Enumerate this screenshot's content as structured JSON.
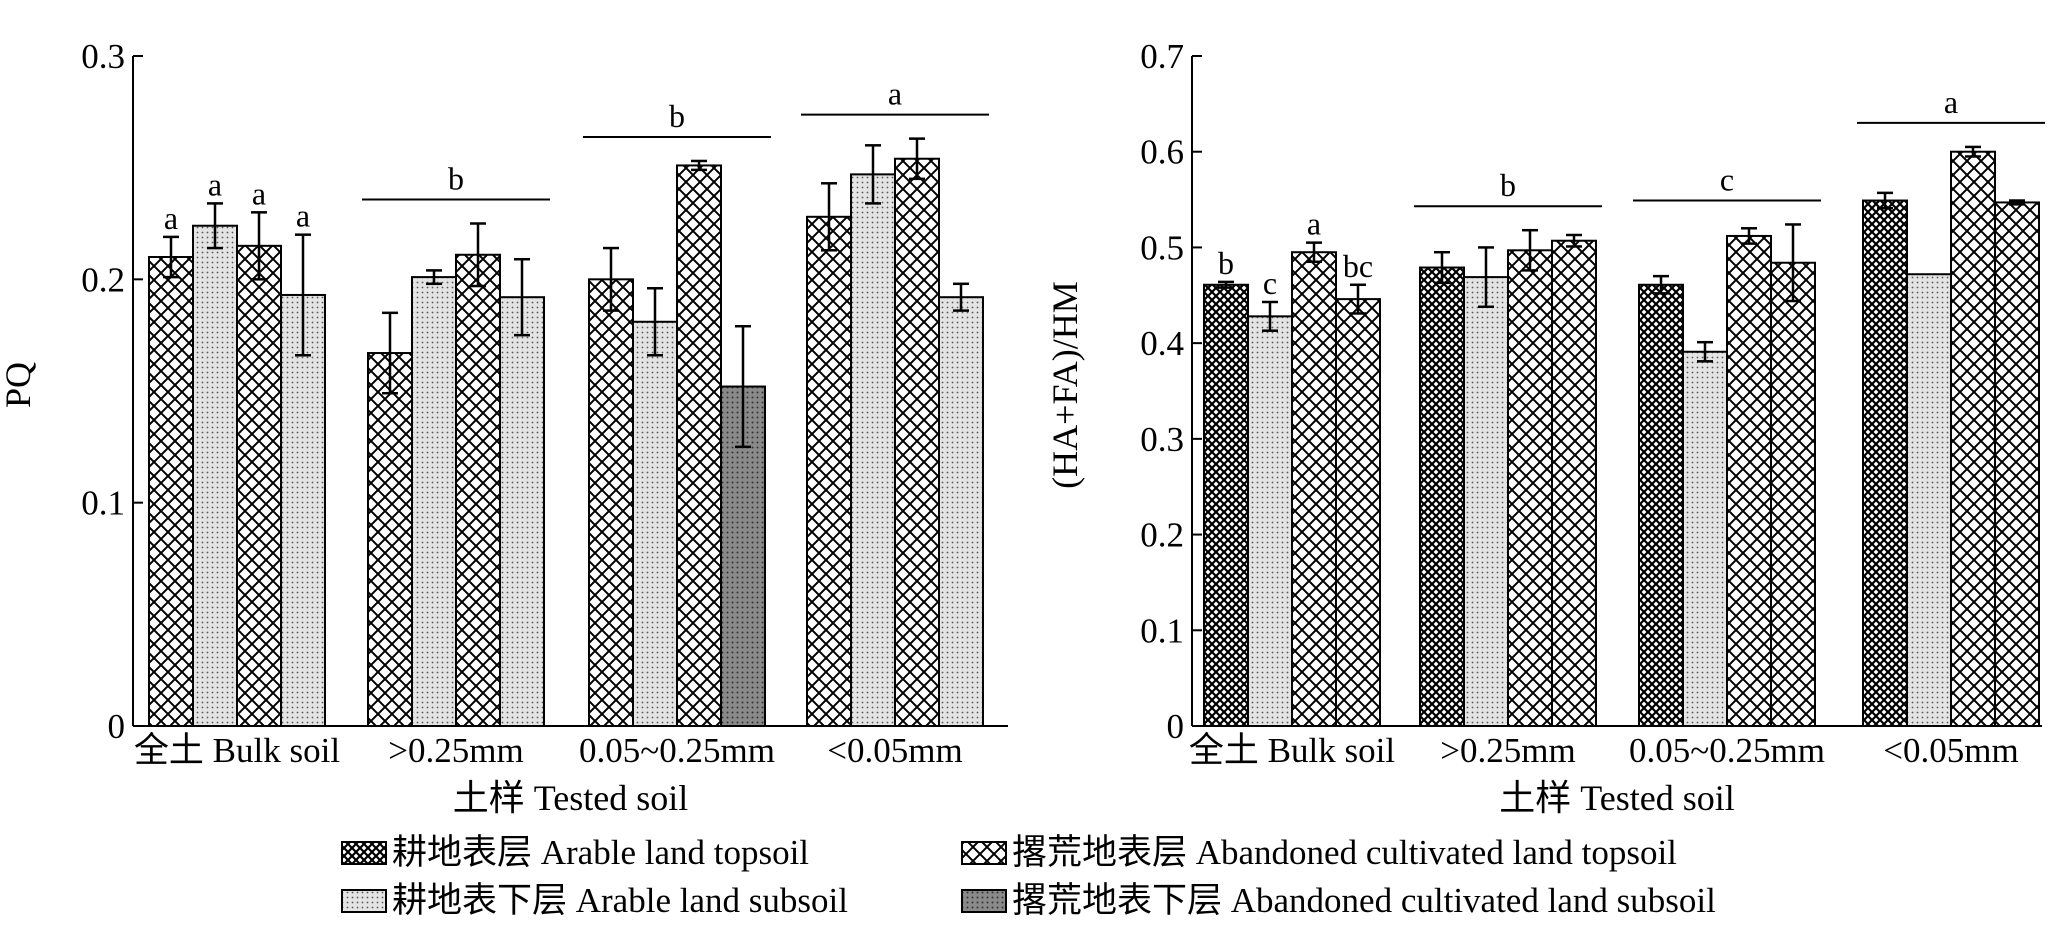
{
  "chart_data": [
    {
      "type": "bar",
      "ylabel": "PQ",
      "xlabel": "土样 Tested soil",
      "ylim": [
        0,
        0.3
      ],
      "yticks": [
        "0",
        "0.1",
        "0.2",
        "0.3"
      ],
      "categories": [
        "全土 Bulk soil",
        ">0.25mm",
        "0.05~0.25mm",
        "<0.05mm"
      ],
      "series": [
        {
          "name": "耕地表层 Arable land topsoil",
          "values": [
            0.21,
            0.167,
            0.2,
            0.228
          ],
          "errors": [
            0.009,
            0.018,
            0.014,
            0.015
          ]
        },
        {
          "name": "耕地表下层 Arable land subsoil",
          "values": [
            0.224,
            0.201,
            0.181,
            0.247
          ],
          "errors": [
            0.01,
            0.003,
            0.015,
            0.013
          ]
        },
        {
          "name": "撂荒地表层 Abandoned cultivated land topsoil",
          "values": [
            0.215,
            0.211,
            0.251,
            0.254
          ],
          "errors": [
            0.015,
            0.014,
            0.002,
            0.009
          ]
        },
        {
          "name": "撂荒地表下层 Abandoned cultivated land subsoil",
          "values": [
            0.193,
            0.192,
            0.152,
            0.192
          ],
          "errors": [
            0.027,
            0.017,
            0.027,
            0.006
          ]
        }
      ],
      "bar_labels": [
        [
          "a",
          "a",
          "a",
          "a"
        ],
        [],
        [],
        []
      ],
      "group_labels": [
        "",
        "b",
        "b",
        "a"
      ]
    },
    {
      "type": "bar",
      "ylabel": "(HA+FA)/HM",
      "xlabel": "土样 Tested soil",
      "ylim": [
        0,
        0.7
      ],
      "yticks": [
        "0",
        "0.1",
        "0.2",
        "0.3",
        "0.4",
        "0.5",
        "0.6",
        "0.7"
      ],
      "categories": [
        "全土 Bulk soil",
        ">0.25mm",
        "0.05~0.25mm",
        "<0.05mm"
      ],
      "series": [
        {
          "name": "耕地表层 Arable land topsoil",
          "values": [
            0.461,
            0.479,
            0.461,
            0.549
          ],
          "errors": [
            0.003,
            0.016,
            0.009,
            0.008
          ]
        },
        {
          "name": "耕地表下层 Arable land subsoil",
          "values": [
            0.428,
            0.469,
            0.391,
            0.472
          ],
          "errors": [
            0.015,
            0.031,
            0.01,
            0.0
          ]
        },
        {
          "name": "撂荒地表层 Abandoned cultivated land topsoil",
          "values": [
            0.495,
            0.497,
            0.512,
            0.6
          ],
          "errors": [
            0.01,
            0.021,
            0.008,
            0.005
          ]
        },
        {
          "name": "撂荒地表下层 Abandoned cultivated land subsoil",
          "values": [
            0.446,
            0.507,
            0.484,
            0.547
          ],
          "errors": [
            0.015,
            0.006,
            0.04,
            0.002
          ]
        }
      ],
      "bar_labels": [
        [
          "b",
          "c",
          "a",
          "bc"
        ],
        [],
        [],
        []
      ],
      "group_labels": [
        "",
        "b",
        "c",
        "a"
      ]
    }
  ],
  "legend": {
    "items": [
      {
        "label": "耕地表层 Arable land topsoil",
        "pattern": "dense-cross"
      },
      {
        "label": "撂荒地表层 Abandoned cultivated land topsoil",
        "pattern": "cross"
      },
      {
        "label": "耕地表下层 Arable land subsoil",
        "pattern": "dots"
      },
      {
        "label": "撂荒地表下层 Abandoned cultivated land subsoil",
        "pattern": "dark-dots"
      }
    ]
  },
  "colors": {
    "axis": "#000000",
    "background": "#ffffff"
  }
}
